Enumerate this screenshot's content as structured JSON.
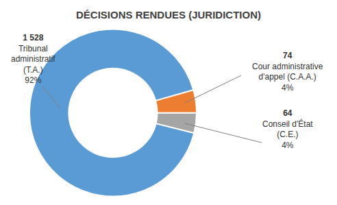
{
  "chart_data": {
    "type": "donut",
    "title": "DÉCISIONS RENDUES (JURIDICTION)",
    "categories": [
      "Tribunal administratif (T.A.)",
      "Cour administrative d'appel (C.A.A.)",
      "Conseil d'État (C.E.)"
    ],
    "values": [
      1528,
      74,
      64
    ],
    "value_labels": [
      "1 528",
      "74",
      "64"
    ],
    "percentages": [
      92,
      4,
      4
    ],
    "percentage_labels": [
      "92%",
      "4%",
      "4%"
    ],
    "colors": [
      "#5b9bd5",
      "#ed7d31",
      "#a5a5a5"
    ],
    "data_labels": true
  }
}
